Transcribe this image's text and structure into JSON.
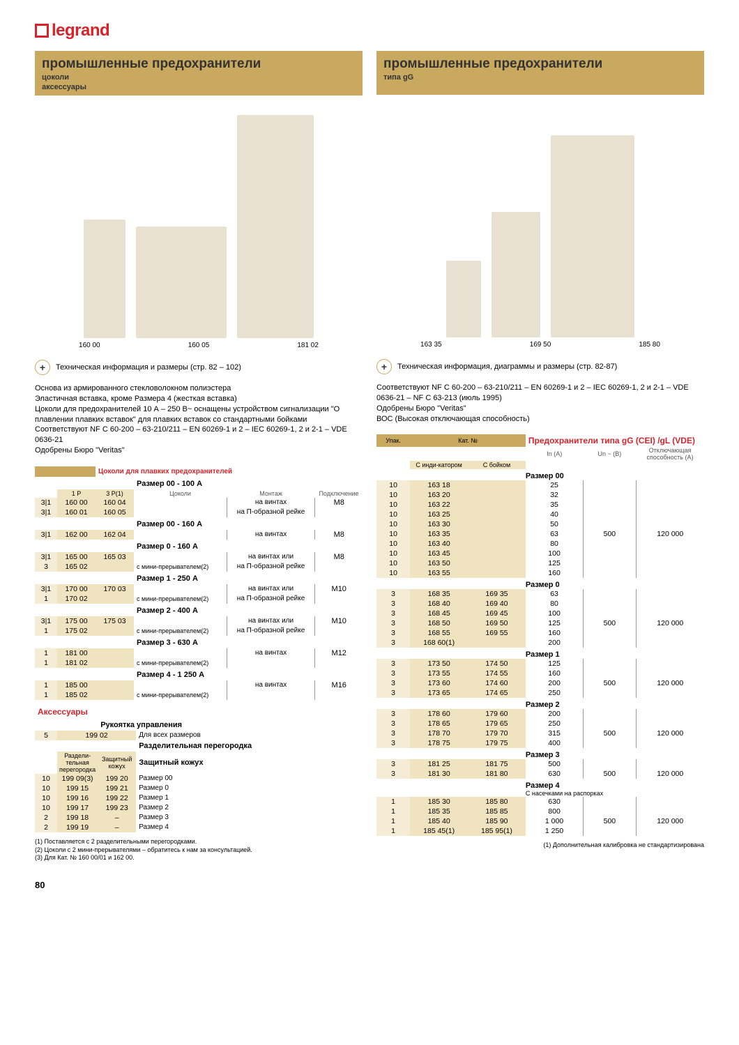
{
  "logo": "legrand",
  "left": {
    "title": "промышленные предохранители",
    "sub1": "цоколи",
    "sub2": "аксессуары",
    "labels": [
      "160 00",
      "160 05",
      "181 02"
    ],
    "info": "Техническая информация и размеры (стр. 82 – 102)",
    "desc": "Основа из армированного стекловолокном полиэстера\nЭластичная вставка, кроме Размера 4 (жесткая вставка)\nЦоколи для предохранителей 10 А – 250 В~ оснащены устройством сигнализации \"О плавлении плавких вставок\" для плавких вставок со стандартными бойками\nСоответствуют NF C 60-200 – 63-210/211 – EN 60269-1 и 2 – IEC 60269-1, 2 и 2-1 – VDE 0636-21\nОдобрены Бюро \"Veritas\"",
    "cat_title": "Цоколи для плавких предохранителей",
    "ch": {
      "pack": "",
      "c1": "1 P",
      "c2": "3 P(1)",
      "base": "Цоколи",
      "mount": "Монтаж",
      "conn": "Подключение"
    },
    "sizes": [
      {
        "t": "Размер 00 - 100 А",
        "rows": [
          [
            "3|1",
            "160 00",
            "160 04",
            "",
            "на винтах",
            "M8"
          ],
          [
            "3|1",
            "160 01",
            "160 05",
            "",
            "на П-образной рейке",
            ""
          ]
        ]
      },
      {
        "t": "Размер 00 - 160 А",
        "rows": [
          [
            "3|1",
            "162 00",
            "162 04",
            "",
            "на винтах",
            "M8"
          ]
        ]
      },
      {
        "t": "Размер 0 - 160 А",
        "rows": [
          [
            "3|1",
            "165 00",
            "165 03",
            "",
            "на винтах или",
            "M8"
          ],
          [
            "3",
            "165 02",
            "",
            "с мини-прерывателем(2)",
            "на П-образной рейке",
            ""
          ]
        ]
      },
      {
        "t": "Размер 1 - 250 А",
        "rows": [
          [
            "3|1",
            "170 00",
            "170 03",
            "",
            "на винтах или",
            "M10"
          ],
          [
            "1",
            "170 02",
            "",
            "с мини-прерывателем(2)",
            "на П-образной рейке",
            ""
          ]
        ]
      },
      {
        "t": "Размер 2 - 400 А",
        "rows": [
          [
            "3|1",
            "175 00",
            "175 03",
            "",
            "на винтах или",
            "M10"
          ],
          [
            "1",
            "175 02",
            "",
            "с мини-прерывателем(2)",
            "на П-образной рейке",
            ""
          ]
        ]
      },
      {
        "t": "Размер 3 - 630 А",
        "rows": [
          [
            "1",
            "181 00",
            "",
            "",
            "на винтах",
            "M12"
          ],
          [
            "1",
            "181 02",
            "",
            "с мини-прерывателем(2)",
            "",
            ""
          ]
        ]
      },
      {
        "t": "Размер 4 - 1 250 А",
        "rows": [
          [
            "1",
            "185 00",
            "",
            "",
            "на винтах",
            "M16"
          ],
          [
            "1",
            "185 02",
            "",
            "с мини-прерывателем(2)",
            "",
            ""
          ]
        ]
      }
    ],
    "acc": "Аксессуары",
    "handle": {
      "t": "Рукоятка управления",
      "d": "Для всех размеров",
      "pack": "5",
      "cat": "199 02"
    },
    "shield": {
      "t": "Разделительная перегородка",
      "t2": "Защитный кожух",
      "h1": "Раздели-тельная перегородка",
      "h2": "Защитный кожух",
      "rows": [
        [
          "10",
          "199 09(3)",
          "199 20",
          "Размер 00"
        ],
        [
          "10",
          "199 15",
          "199 21",
          "Размер 0"
        ],
        [
          "10",
          "199 16",
          "199 22",
          "Размер 1"
        ],
        [
          "10",
          "199 17",
          "199 23",
          "Размер 2"
        ],
        [
          "2",
          "199 18",
          "–",
          "Размер 3"
        ],
        [
          "2",
          "199 19",
          "–",
          "Размер 4"
        ]
      ]
    },
    "notes": "(1) Поставляется с 2 разделительными перегородками.\n(2) Цоколи с 2 мини-прерывателями – обратитесь к нам за консультацией.\n(3) Для Кат. № 160 00/01 и 162 00."
  },
  "right": {
    "title": "промышленные предохранители",
    "sub": "типа gG",
    "labels": [
      "163 35",
      "169 50",
      "185 80"
    ],
    "info": "Техническая информация, диаграммы и размеры (стр. 82-87)",
    "desc": "Соответствуют NF C 60-200 – 63-210/211 – EN 60269-1 и 2 – IEC 60269-1, 2 и 2-1 – VDE 0636-21 – NF C 63-213 (июль 1995)\nОдобрены Бюро \"Veritas\"\nВОС (Высокая отключающая способность)",
    "ch": {
      "pack": "Упак.",
      "cat": "Кат. №",
      "title": "Предохранители типа gG (CEI) /gL (VDE)",
      "c1": "С инди-катором",
      "c2": "С бойком",
      "in": "In (A)",
      "un": "Un ~ (B)",
      "cap": "Отключающая способность (А)"
    },
    "groups": [
      {
        "t": "Размер 00",
        "un": "500",
        "cap": "120 000",
        "rows": [
          [
            "10",
            "163 18",
            "",
            "25"
          ],
          [
            "10",
            "163 20",
            "",
            "32"
          ],
          [
            "10",
            "163 22",
            "",
            "35"
          ],
          [
            "10",
            "163 25",
            "",
            "40"
          ],
          [
            "10",
            "163 30",
            "",
            "50"
          ],
          [
            "10",
            "163 35",
            "",
            "63"
          ],
          [
            "10",
            "163 40",
            "",
            "80"
          ],
          [
            "10",
            "163 45",
            "",
            "100"
          ],
          [
            "10",
            "163 50",
            "",
            "125"
          ],
          [
            "10",
            "163 55",
            "",
            "160"
          ]
        ]
      },
      {
        "t": "Размер 0",
        "un": "500",
        "cap": "120 000",
        "rows": [
          [
            "3",
            "168 35",
            "169 35",
            "63"
          ],
          [
            "3",
            "168 40",
            "169 40",
            "80"
          ],
          [
            "3",
            "168 45",
            "169 45",
            "100"
          ],
          [
            "3",
            "168 50",
            "169 50",
            "125"
          ],
          [
            "3",
            "168 55",
            "169 55",
            "160"
          ],
          [
            "3",
            "168 60(1)",
            "",
            "200"
          ]
        ]
      },
      {
        "t": "Размер 1",
        "un": "500",
        "cap": "120 000",
        "rows": [
          [
            "3",
            "173 50",
            "174 50",
            "125"
          ],
          [
            "3",
            "173 55",
            "174 55",
            "160"
          ],
          [
            "3",
            "173 60",
            "174 60",
            "200"
          ],
          [
            "3",
            "173 65",
            "174 65",
            "250"
          ]
        ]
      },
      {
        "t": "Размер 2",
        "un": "500",
        "cap": "120 000",
        "rows": [
          [
            "3",
            "178 60",
            "179 60",
            "200"
          ],
          [
            "3",
            "178 65",
            "179 65",
            "250"
          ],
          [
            "3",
            "178 70",
            "179 70",
            "315"
          ],
          [
            "3",
            "178 75",
            "179 75",
            "400"
          ]
        ]
      },
      {
        "t": "Размер 3",
        "un": "500",
        "cap": "120 000",
        "rows": [
          [
            "3",
            "181 25",
            "181 75",
            "500"
          ],
          [
            "3",
            "181 30",
            "181 80",
            "630"
          ]
        ]
      },
      {
        "t": "Размер 4",
        "extra": "С насечками на распорках",
        "un": "500",
        "cap": "120 000",
        "rows": [
          [
            "1",
            "185 30",
            "185 80",
            "630"
          ],
          [
            "1",
            "185 35",
            "185 85",
            "800"
          ],
          [
            "1",
            "185 40",
            "185 90",
            "1 000"
          ],
          [
            "1",
            "185 45(1)",
            "185 95(1)",
            "1 250"
          ]
        ]
      }
    ],
    "note": "(1) Дополнительная калибровка не стандартизирована"
  },
  "page": "80"
}
